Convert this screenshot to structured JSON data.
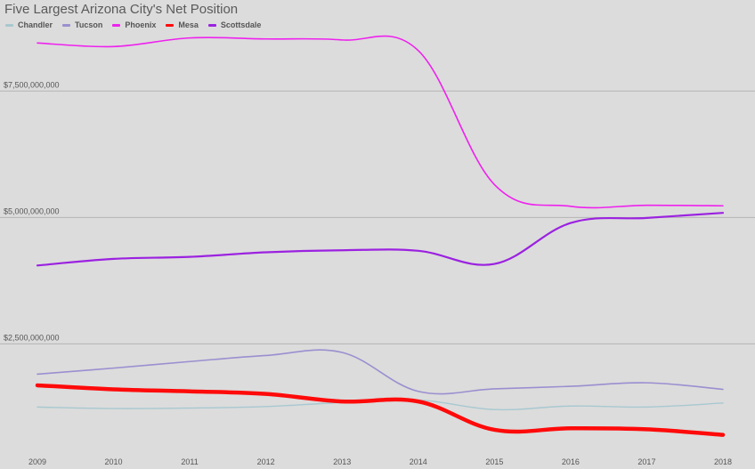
{
  "chart_data": {
    "type": "line",
    "title": "Five Largest Arizona City's Net Position",
    "xlabel": "",
    "ylabel": "",
    "categories": [
      "2009",
      "2010",
      "2011",
      "2012",
      "2013",
      "2014",
      "2015",
      "2016",
      "2017",
      "2018"
    ],
    "y_ticks": [
      {
        "value": 2500000000,
        "label": "$2,500,000,000"
      },
      {
        "value": 5000000000,
        "label": "$5,000,000,000"
      },
      {
        "value": 7500000000,
        "label": "$7,500,000,000"
      }
    ],
    "ylim": [
      500000000,
      9300000000
    ],
    "grid": true,
    "legend": "top-left",
    "series": [
      {
        "name": "Chandler",
        "color": "#a8c8d0",
        "width": 1.4,
        "values": [
          1250000000,
          1220000000,
          1230000000,
          1260000000,
          1340000000,
          1390000000,
          1200000000,
          1270000000,
          1250000000,
          1330000000
        ]
      },
      {
        "name": "Tucson",
        "color": "#9b8fd0",
        "width": 1.6,
        "values": [
          1900000000,
          2020000000,
          2150000000,
          2270000000,
          2330000000,
          1560000000,
          1610000000,
          1660000000,
          1730000000,
          1600000000
        ]
      },
      {
        "name": "Phoenix",
        "color": "#ee22ee",
        "width": 1.6,
        "values": [
          8450000000,
          8380000000,
          8550000000,
          8530000000,
          8510000000,
          8300000000,
          5650000000,
          5220000000,
          5240000000,
          5230000000
        ]
      },
      {
        "name": "Mesa",
        "color": "#ff0a0a",
        "width": 4.5,
        "values": [
          1680000000,
          1600000000,
          1560000000,
          1510000000,
          1360000000,
          1360000000,
          800000000,
          830000000,
          810000000,
          700000000
        ]
      },
      {
        "name": "Scottsdale",
        "color": "#9b22e0",
        "width": 2.2,
        "values": [
          4050000000,
          4180000000,
          4220000000,
          4310000000,
          4350000000,
          4340000000,
          4080000000,
          4890000000,
          4990000000,
          5090000000
        ]
      }
    ]
  }
}
